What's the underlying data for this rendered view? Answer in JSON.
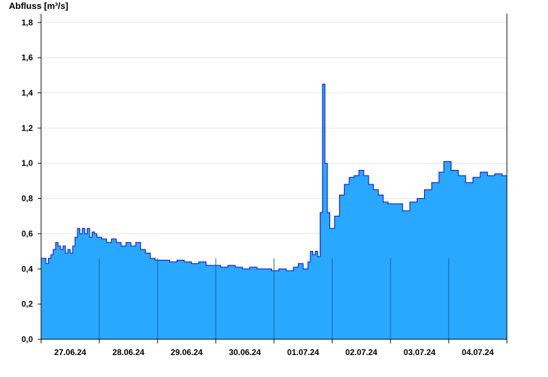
{
  "chart_data": {
    "type": "area",
    "title": "",
    "ylabel": "Abfluss [m³/s]",
    "xlabel": "",
    "ylim": [
      0,
      1.85
    ],
    "yticks": [
      {
        "value": 0.0,
        "label": "0,0"
      },
      {
        "value": 0.2,
        "label": "0,2"
      },
      {
        "value": 0.4,
        "label": "0,4"
      },
      {
        "value": 0.6,
        "label": "0,6"
      },
      {
        "value": 0.8,
        "label": "0,8"
      },
      {
        "value": 1.0,
        "label": "1,0"
      },
      {
        "value": 1.2,
        "label": "1,2"
      },
      {
        "value": 1.4,
        "label": "1,4"
      },
      {
        "value": 1.6,
        "label": "1,6"
      },
      {
        "value": 1.8,
        "label": "1,8"
      }
    ],
    "xlim": [
      "2024-06-27T00:00",
      "2024-07-05T00:00"
    ],
    "day_labels": [
      "27.06.24",
      "28.06.24",
      "29.06.24",
      "30.06.24",
      "01.07.24",
      "02.07.24",
      "03.07.24",
      "04.07.24"
    ],
    "day_separators": [
      "2024-06-28T00:00",
      "2024-06-29T00:00",
      "2024-06-30T00:00",
      "2024-07-01T00:00",
      "2024-07-02T00:00",
      "2024-07-03T00:00",
      "2024-07-04T00:00"
    ],
    "grid": "horizontal",
    "fill_color": "#29a8ff",
    "line_color": "#0000dd",
    "series": [
      {
        "x": [
          "2024-06-27T00:00",
          "2024-06-27T01:00",
          "2024-06-27T02:00",
          "2024-06-27T03:00",
          "2024-06-27T04:00",
          "2024-06-27T05:00",
          "2024-06-27T06:00",
          "2024-06-27T07:00",
          "2024-06-27T08:00",
          "2024-06-27T09:00",
          "2024-06-27T10:00",
          "2024-06-27T11:00",
          "2024-06-27T12:00",
          "2024-06-27T13:00",
          "2024-06-27T14:00",
          "2024-06-27T15:00",
          "2024-06-27T16:00",
          "2024-06-27T17:00",
          "2024-06-27T18:00",
          "2024-06-27T19:00",
          "2024-06-27T20:00",
          "2024-06-27T21:00",
          "2024-06-27T22:00",
          "2024-06-27T23:00",
          "2024-06-28T01:00",
          "2024-06-28T03:00",
          "2024-06-28T05:00",
          "2024-06-28T07:00",
          "2024-06-28T09:00",
          "2024-06-28T11:00",
          "2024-06-28T13:00",
          "2024-06-28T15:00",
          "2024-06-28T17:00",
          "2024-06-28T19:00",
          "2024-06-28T21:00",
          "2024-06-28T23:00",
          "2024-06-29T02:00",
          "2024-06-29T05:00",
          "2024-06-29T08:00",
          "2024-06-29T11:00",
          "2024-06-29T14:00",
          "2024-06-29T17:00",
          "2024-06-29T20:00",
          "2024-06-29T23:00",
          "2024-06-30T02:00",
          "2024-06-30T05:00",
          "2024-06-30T08:00",
          "2024-06-30T11:00",
          "2024-06-30T14:00",
          "2024-06-30T17:00",
          "2024-06-30T20:00",
          "2024-06-30T23:00",
          "2024-07-01T02:00",
          "2024-07-01T05:00",
          "2024-07-01T08:00",
          "2024-07-01T10:00",
          "2024-07-01T12:00",
          "2024-07-01T14:00",
          "2024-07-01T15:00",
          "2024-07-01T16:00",
          "2024-07-01T17:00",
          "2024-07-01T18:00",
          "2024-07-01T19:00",
          "2024-07-01T20:00",
          "2024-07-01T21:00",
          "2024-07-01T22:00",
          "2024-07-01T23:00",
          "2024-07-02T01:00",
          "2024-07-02T03:00",
          "2024-07-02T05:00",
          "2024-07-02T07:00",
          "2024-07-02T09:00",
          "2024-07-02T11:00",
          "2024-07-02T13:00",
          "2024-07-02T15:00",
          "2024-07-02T17:00",
          "2024-07-02T19:00",
          "2024-07-02T21:00",
          "2024-07-02T23:00",
          "2024-07-03T02:00",
          "2024-07-03T05:00",
          "2024-07-03T08:00",
          "2024-07-03T11:00",
          "2024-07-03T14:00",
          "2024-07-03T17:00",
          "2024-07-03T20:00",
          "2024-07-03T22:00",
          "2024-07-04T01:00",
          "2024-07-04T04:00",
          "2024-07-04T07:00",
          "2024-07-04T10:00",
          "2024-07-04T13:00",
          "2024-07-04T16:00",
          "2024-07-04T19:00",
          "2024-07-04T22:00",
          "2024-07-04T23:59"
        ],
        "values": [
          0.46,
          0.46,
          0.43,
          0.46,
          0.48,
          0.51,
          0.55,
          0.53,
          0.51,
          0.53,
          0.49,
          0.51,
          0.49,
          0.53,
          0.58,
          0.63,
          0.6,
          0.63,
          0.6,
          0.63,
          0.58,
          0.61,
          0.6,
          0.58,
          0.57,
          0.55,
          0.57,
          0.55,
          0.53,
          0.55,
          0.53,
          0.55,
          0.51,
          0.49,
          0.46,
          0.45,
          0.45,
          0.44,
          0.45,
          0.44,
          0.43,
          0.44,
          0.42,
          0.42,
          0.41,
          0.42,
          0.41,
          0.4,
          0.41,
          0.4,
          0.4,
          0.39,
          0.4,
          0.39,
          0.41,
          0.43,
          0.4,
          0.44,
          0.5,
          0.48,
          0.5,
          0.47,
          0.72,
          1.45,
          1.0,
          0.72,
          0.63,
          0.7,
          0.82,
          0.88,
          0.92,
          0.93,
          0.96,
          0.93,
          0.88,
          0.85,
          0.82,
          0.78,
          0.77,
          0.77,
          0.73,
          0.78,
          0.8,
          0.85,
          0.89,
          0.95,
          1.01,
          0.96,
          0.93,
          0.89,
          0.92,
          0.95,
          0.93,
          0.94,
          0.93,
          0.86
        ]
      }
    ]
  }
}
